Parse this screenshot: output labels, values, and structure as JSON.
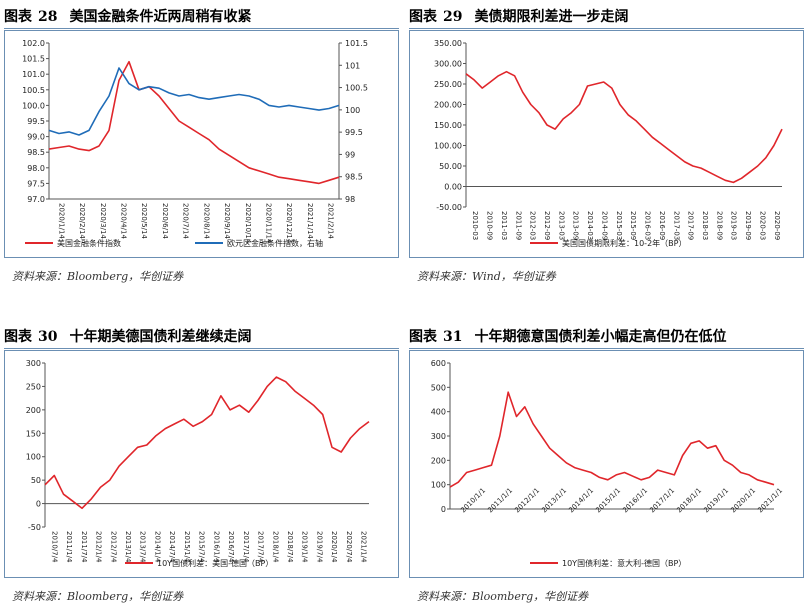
{
  "panels": [
    {
      "label": "图表",
      "number": "28",
      "title": "美国金融条件近两周稍有收紧",
      "source": "资料来源：Bloomberg，华创证券",
      "chart_data": {
        "type": "line",
        "x_ticks": [
          "2020/1/14",
          "2020/2/14",
          "2020/3/14",
          "2020/4/14",
          "2020/5/14",
          "2020/6/14",
          "2020/7/14",
          "2020/8/14",
          "2020/9/14",
          "2020/10/14",
          "2020/11/14",
          "2020/12/14",
          "2021/1/14",
          "2021/2/14"
        ],
        "y_left_ticks": [
          "102.0",
          "101.5",
          "101.0",
          "100.5",
          "100.0",
          "99.5",
          "99.0",
          "98.5",
          "98.0",
          "97.5",
          "97.0"
        ],
        "y_left_range": [
          97.0,
          102.0
        ],
        "y_right_ticks": [
          "101.5",
          "101",
          "100.5",
          "100",
          "99.5",
          "99",
          "98.5",
          "98"
        ],
        "y_right_range": [
          98.0,
          101.5
        ],
        "series": [
          {
            "name": "美国金融条件指数",
            "color": "#e0262b",
            "axis": "left",
            "values": [
              98.6,
              98.65,
              98.7,
              98.6,
              98.55,
              98.7,
              99.2,
              100.8,
              101.4,
              100.5,
              100.6,
              100.3,
              99.9,
              99.5,
              99.3,
              99.1,
              98.9,
              98.6,
              98.4,
              98.2,
              98.0,
              97.9,
              97.8,
              97.7,
              97.65,
              97.6,
              97.55,
              97.5,
              97.6,
              97.7
            ]
          },
          {
            "name": "欧元区金融条件指数，右轴",
            "color": "#1f6cb8",
            "axis": "left",
            "values": [
              99.2,
              99.1,
              99.15,
              99.05,
              99.2,
              99.8,
              100.3,
              101.2,
              100.7,
              100.5,
              100.6,
              100.55,
              100.4,
              100.3,
              100.35,
              100.25,
              100.2,
              100.25,
              100.3,
              100.35,
              100.3,
              100.2,
              100.0,
              99.95,
              100.0,
              99.95,
              99.9,
              99.85,
              99.9,
              100.0
            ]
          }
        ],
        "legend": [
          "美国金融条件指数",
          "欧元区金融条件指数，右轴"
        ]
      }
    },
    {
      "label": "图表",
      "number": "29",
      "title": "美债期限利差进一步走阔",
      "source": "资料来源：Wind，华创证券",
      "chart_data": {
        "type": "line",
        "x_ticks": [
          "2010-03",
          "2010-09",
          "2011-03",
          "2011-09",
          "2012-03",
          "2012-09",
          "2013-03",
          "2013-09",
          "2014-03",
          "2014-09",
          "2015-03",
          "2015-09",
          "2016-03",
          "2016-09",
          "2017-03",
          "2017-09",
          "2018-03",
          "2018-09",
          "2019-03",
          "2019-09",
          "2020-03",
          "2020-09"
        ],
        "y_ticks": [
          "350.00",
          "300.00",
          "250.00",
          "200.00",
          "150.00",
          "100.00",
          "50.00",
          "0.00",
          "-50.00"
        ],
        "y_range": [
          -50,
          350
        ],
        "series": [
          {
            "name": "美国国债期限利差：10-2年（BP）",
            "color": "#e0262b",
            "values": [
              275,
              260,
              240,
              255,
              270,
              280,
              270,
              230,
              200,
              180,
              150,
              140,
              165,
              180,
              200,
              245,
              250,
              255,
              240,
              200,
              175,
              160,
              140,
              120,
              105,
              90,
              75,
              60,
              50,
              45,
              35,
              25,
              15,
              10,
              20,
              35,
              50,
              70,
              100,
              140
            ]
          }
        ],
        "legend": [
          "美国国债期限利差：10-2年（BP）"
        ]
      }
    },
    {
      "label": "图表",
      "number": "30",
      "title": "十年期美德国债利差继续走阔",
      "source": "资料来源：Bloomberg，华创证券",
      "chart_data": {
        "type": "line",
        "x_ticks": [
          "2010/7/4",
          "2011/1/4",
          "2011/7/4",
          "2012/1/4",
          "2012/7/4",
          "2013/1/4",
          "2013/7/4",
          "2014/1/4",
          "2014/7/4",
          "2015/1/4",
          "2015/7/4",
          "2016/1/4",
          "2016/7/4",
          "2017/1/4",
          "2017/7/4",
          "2018/1/4",
          "2018/7/4",
          "2019/1/4",
          "2019/7/4",
          "2020/1/4",
          "2020/7/4",
          "2021/1/4"
        ],
        "y_ticks": [
          "300",
          "250",
          "200",
          "150",
          "100",
          "50",
          "0",
          "-50"
        ],
        "y_range": [
          -50,
          300
        ],
        "series": [
          {
            "name": "10Y国债利差：美国-德国（BP）",
            "color": "#e0262b",
            "values": [
              40,
              60,
              20,
              5,
              -10,
              10,
              35,
              50,
              80,
              100,
              120,
              125,
              145,
              160,
              170,
              180,
              165,
              175,
              190,
              230,
              200,
              210,
              195,
              220,
              250,
              270,
              260,
              240,
              225,
              210,
              190,
              120,
              110,
              140,
              160,
              175
            ]
          }
        ],
        "legend": [
          "10Y国债利差：美国-德国（BP）"
        ]
      }
    },
    {
      "label": "图表",
      "number": "31",
      "title": "十年期德意国债利差小幅走高但仍在低位",
      "source": "资料来源：Bloomberg，华创证券",
      "chart_data": {
        "type": "line",
        "x_ticks": [
          "2010/1/1",
          "2011/1/1",
          "2012/1/1",
          "2013/1/1",
          "2014/1/1",
          "2015/1/1",
          "2016/1/1",
          "2017/1/1",
          "2018/1/1",
          "2019/1/1",
          "2020/1/1",
          "2021/1/1"
        ],
        "y_ticks": [
          "600",
          "500",
          "400",
          "300",
          "200",
          "100",
          "0"
        ],
        "y_range": [
          0,
          600
        ],
        "series": [
          {
            "name": "10Y国债利差：意大利-德国（BP）",
            "color": "#e0262b",
            "values": [
              90,
              110,
              150,
              160,
              170,
              180,
              300,
              480,
              380,
              420,
              350,
              300,
              250,
              220,
              190,
              170,
              160,
              150,
              130,
              120,
              140,
              150,
              135,
              120,
              130,
              160,
              150,
              140,
              220,
              270,
              280,
              250,
              260,
              200,
              180,
              150,
              140,
              120,
              110,
              100
            ]
          }
        ],
        "legend": [
          "10Y国债利差：意大利-德国（BP）"
        ]
      }
    }
  ]
}
